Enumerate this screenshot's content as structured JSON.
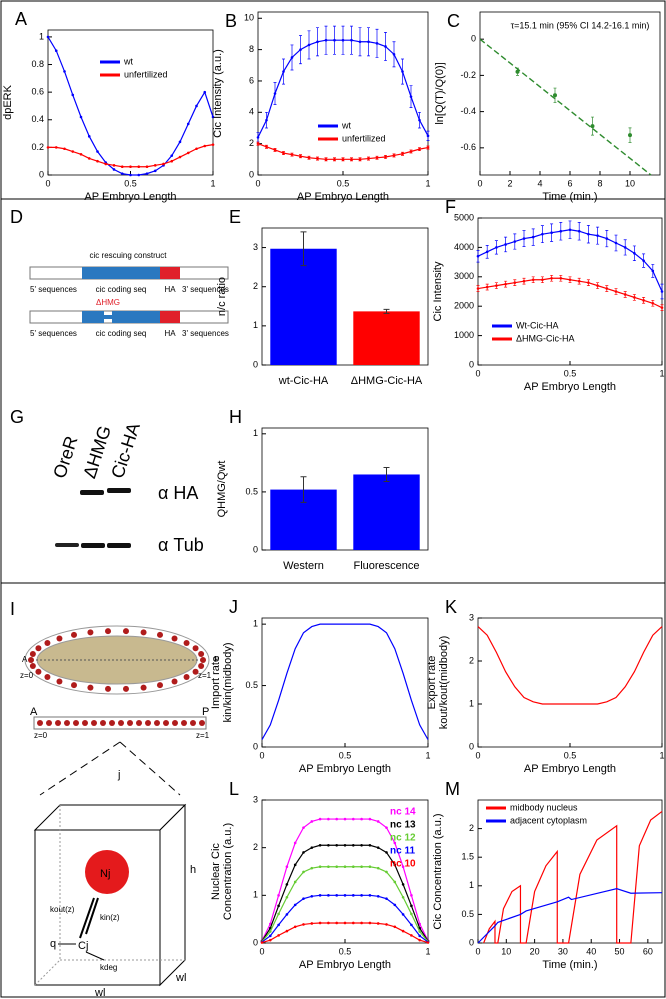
{
  "chart_data": [
    {
      "type": "line",
      "panel": "A",
      "xlabel": "AP Embryo Length",
      "ylabel": "dpERK",
      "x": [
        0,
        0.05,
        0.1,
        0.15,
        0.2,
        0.25,
        0.3,
        0.35,
        0.4,
        0.45,
        0.5,
        0.55,
        0.6,
        0.65,
        0.7,
        0.75,
        0.8,
        0.85,
        0.9,
        0.95,
        1
      ],
      "xlim": [
        0,
        1
      ],
      "xticks": [
        0,
        0.5,
        1
      ],
      "ylim": [
        0,
        1.05
      ],
      "yticks": [
        0,
        0.2,
        0.4,
        0.6,
        0.8,
        1
      ],
      "markers": true,
      "legend": "upper center",
      "series": [
        {
          "name": "wt",
          "color": "#0000ff",
          "values": [
            1.0,
            0.9,
            0.75,
            0.58,
            0.42,
            0.28,
            0.17,
            0.09,
            0.04,
            0.01,
            0.0,
            0.0,
            0.01,
            0.03,
            0.07,
            0.14,
            0.24,
            0.37,
            0.5,
            0.6,
            0.42
          ]
        },
        {
          "name": "unfertilized",
          "color": "#ff0000",
          "values": [
            0.2,
            0.2,
            0.19,
            0.17,
            0.15,
            0.12,
            0.1,
            0.08,
            0.07,
            0.06,
            0.06,
            0.06,
            0.06,
            0.07,
            0.08,
            0.1,
            0.13,
            0.16,
            0.19,
            0.21,
            0.22
          ]
        }
      ]
    },
    {
      "type": "line",
      "panel": "B",
      "xlabel": "AP Embryo Length",
      "ylabel": "Cic Intensity (a.u.)",
      "x": [
        0,
        0.05,
        0.1,
        0.15,
        0.2,
        0.25,
        0.3,
        0.35,
        0.4,
        0.45,
        0.5,
        0.55,
        0.6,
        0.65,
        0.7,
        0.75,
        0.8,
        0.85,
        0.9,
        0.95,
        1
      ],
      "xlim": [
        0,
        1
      ],
      "xticks": [
        0,
        0.5,
        1
      ],
      "ylim": [
        0,
        10.4
      ],
      "yticks": [
        0,
        2,
        4,
        6,
        8,
        10
      ],
      "markers": true,
      "legend": "lower right",
      "series": [
        {
          "name": "wt",
          "color": "#0000ff",
          "values": [
            2.4,
            3.5,
            5.2,
            6.6,
            7.5,
            8.0,
            8.3,
            8.5,
            8.6,
            8.6,
            8.6,
            8.6,
            8.5,
            8.5,
            8.4,
            8.2,
            7.7,
            6.6,
            5.0,
            3.5,
            2.5
          ],
          "errors": [
            0.3,
            0.5,
            0.7,
            0.8,
            0.8,
            0.9,
            0.9,
            0.9,
            0.9,
            0.9,
            0.9,
            0.9,
            0.9,
            0.9,
            0.9,
            0.9,
            0.8,
            0.8,
            0.7,
            0.5,
            0.3
          ]
        },
        {
          "name": "unfertilized",
          "color": "#ff0000",
          "values": [
            2.0,
            1.8,
            1.6,
            1.4,
            1.3,
            1.2,
            1.1,
            1.05,
            1.0,
            1.0,
            1.0,
            1.0,
            1.0,
            1.05,
            1.1,
            1.15,
            1.25,
            1.35,
            1.5,
            1.65,
            1.75
          ],
          "errors": [
            0.1,
            0.1,
            0.1,
            0.1,
            0.1,
            0.1,
            0.1,
            0.1,
            0.1,
            0.1,
            0.1,
            0.1,
            0.1,
            0.1,
            0.1,
            0.1,
            0.1,
            0.1,
            0.1,
            0.1,
            0.1
          ]
        }
      ]
    },
    {
      "type": "scatter",
      "panel": "C",
      "xlabel": "Time (min.)",
      "ylabel": "ln[Q(T)/Q(0)]",
      "annotation": "τ=15.1 min (95% CI 14.2-16.1 min)",
      "xlim": [
        0,
        12
      ],
      "xticks": [
        0,
        2,
        4,
        6,
        8,
        10
      ],
      "ylim": [
        -0.75,
        0.15
      ],
      "yticks": [
        0,
        -0.2,
        -0.4,
        -0.6
      ],
      "series": [
        {
          "color": "#2e8b2e",
          "style": "points",
          "x": [
            2.5,
            5,
            7.5,
            10
          ],
          "values": [
            -0.18,
            -0.31,
            -0.48,
            -0.53
          ],
          "errors": [
            0.02,
            0.04,
            0.05,
            0.04
          ]
        },
        {
          "color": "#2e8b2e",
          "style": "dashed",
          "x": [
            0,
            11.4
          ],
          "values": [
            0,
            -0.75
          ]
        }
      ]
    },
    {
      "type": "bar",
      "panel": "E",
      "ylabel": "n/c ratio",
      "categories": [
        "wt-Cic-HA",
        "ΔHMG-Cic-HA"
      ],
      "values": [
        2.97,
        1.37
      ],
      "errors": [
        0.43,
        0.05
      ],
      "colors": [
        "#0000ff",
        "#ff0000"
      ],
      "ylim": [
        0,
        3.5
      ],
      "yticks": [
        0,
        1,
        2,
        3
      ]
    },
    {
      "type": "line",
      "panel": "F",
      "xlabel": "AP Embryo Length",
      "ylabel": "Cic Intensity",
      "x": [
        0,
        0.05,
        0.1,
        0.15,
        0.2,
        0.25,
        0.3,
        0.35,
        0.4,
        0.45,
        0.5,
        0.55,
        0.6,
        0.65,
        0.7,
        0.75,
        0.8,
        0.85,
        0.9,
        0.95,
        1
      ],
      "xlim": [
        0,
        1
      ],
      "xticks": [
        0,
        0.5,
        1
      ],
      "ylim": [
        0,
        5000
      ],
      "yticks": [
        0,
        1000,
        2000,
        3000,
        4000,
        5000
      ],
      "markers": true,
      "legend": "lower right",
      "series": [
        {
          "name": "Wt-Cic-HA",
          "color": "#0000ff",
          "values": [
            3700,
            3850,
            4000,
            4100,
            4200,
            4300,
            4350,
            4450,
            4500,
            4550,
            4600,
            4550,
            4450,
            4400,
            4300,
            4150,
            4000,
            3800,
            3550,
            3200,
            2500
          ],
          "errors": [
            200,
            220,
            230,
            250,
            260,
            270,
            280,
            290,
            300,
            300,
            300,
            300,
            300,
            290,
            280,
            270,
            260,
            250,
            230,
            220,
            250
          ]
        },
        {
          "name": "ΔHMG-Cic-HA",
          "color": "#ff0000",
          "values": [
            2600,
            2650,
            2700,
            2750,
            2800,
            2850,
            2900,
            2900,
            2950,
            2950,
            2900,
            2850,
            2800,
            2700,
            2600,
            2500,
            2400,
            2300,
            2200,
            2100,
            1950
          ],
          "errors": [
            100,
            100,
            100,
            100,
            100,
            100,
            100,
            100,
            100,
            100,
            100,
            100,
            100,
            100,
            100,
            100,
            100,
            100,
            100,
            100,
            100
          ]
        }
      ]
    },
    {
      "type": "bar",
      "panel": "H",
      "ylabel": "QHMG/Qwt",
      "categories": [
        "Western",
        "Fluorescence"
      ],
      "values": [
        0.52,
        0.65
      ],
      "errors": [
        0.11,
        0.06
      ],
      "colors": [
        "#0000ff",
        "#0000ff"
      ],
      "ylim": [
        0,
        1.05
      ],
      "yticks": [
        0,
        0.5,
        1
      ]
    },
    {
      "type": "line",
      "panel": "J",
      "xlabel": "AP Embryo Length",
      "ylabel": [
        "Import rate",
        "kin/kin(midbody)"
      ],
      "x": [
        0,
        0.05,
        0.1,
        0.15,
        0.2,
        0.25,
        0.3,
        0.35,
        0.4,
        0.45,
        0.5,
        0.55,
        0.6,
        0.65,
        0.7,
        0.75,
        0.8,
        0.85,
        0.9,
        0.95,
        1
      ],
      "xlim": [
        0,
        1
      ],
      "xticks": [
        0,
        0.5,
        1
      ],
      "ylim": [
        0,
        1.05
      ],
      "yticks": [
        0,
        0.5,
        1
      ],
      "series": [
        {
          "color": "#0000ff",
          "values": [
            0.06,
            0.18,
            0.38,
            0.6,
            0.8,
            0.93,
            0.98,
            1,
            1,
            1,
            1,
            1,
            1,
            1,
            0.98,
            0.93,
            0.8,
            0.6,
            0.38,
            0.18,
            0.06
          ]
        }
      ]
    },
    {
      "type": "line",
      "panel": "K",
      "xlabel": "AP Embryo Length",
      "ylabel": [
        "Export rate",
        "kout/kout(midbody)"
      ],
      "x": [
        0,
        0.05,
        0.1,
        0.15,
        0.2,
        0.25,
        0.3,
        0.35,
        0.4,
        0.45,
        0.5,
        0.55,
        0.6,
        0.65,
        0.7,
        0.75,
        0.8,
        0.85,
        0.9,
        0.95,
        1
      ],
      "xlim": [
        0,
        1
      ],
      "xticks": [
        0,
        0.5,
        1
      ],
      "ylim": [
        0,
        3
      ],
      "yticks": [
        0,
        1,
        2,
        3
      ],
      "series": [
        {
          "color": "#ff0000",
          "values": [
            2.8,
            2.6,
            2.2,
            1.75,
            1.4,
            1.15,
            1.05,
            1.0,
            1.0,
            1.0,
            1.0,
            1.0,
            1.0,
            1.0,
            1.05,
            1.15,
            1.4,
            1.75,
            2.2,
            2.6,
            2.8
          ]
        }
      ]
    },
    {
      "type": "line",
      "panel": "L",
      "xlabel": "AP Embryo Length",
      "ylabel": [
        "Nuclear Cic",
        "Concentration (a.u.)"
      ],
      "x": [
        0,
        0.05,
        0.1,
        0.15,
        0.2,
        0.25,
        0.3,
        0.35,
        0.4,
        0.45,
        0.5,
        0.55,
        0.6,
        0.65,
        0.7,
        0.75,
        0.8,
        0.85,
        0.9,
        0.95,
        1
      ],
      "xlim": [
        0,
        1
      ],
      "xticks": [
        0,
        0.5,
        1
      ],
      "ylim": [
        0,
        3
      ],
      "yticks": [
        0,
        1,
        2,
        3
      ],
      "markers": true,
      "legend": "upper right",
      "series": [
        {
          "name": "nc 14",
          "color": "#ff00ff",
          "values": [
            0.05,
            0.4,
            1.0,
            1.6,
            2.1,
            2.42,
            2.55,
            2.6,
            2.6,
            2.6,
            2.6,
            2.6,
            2.6,
            2.6,
            2.55,
            2.42,
            2.1,
            1.6,
            1.0,
            0.4,
            0.05
          ]
        },
        {
          "name": "nc 13",
          "color": "#000000",
          "values": [
            0.04,
            0.31,
            0.78,
            1.23,
            1.64,
            1.9,
            2.0,
            2.05,
            2.05,
            2.05,
            2.05,
            2.05,
            2.05,
            2.05,
            2.0,
            1.9,
            1.64,
            1.23,
            0.78,
            0.31,
            0.04
          ]
        },
        {
          "name": "nc 12",
          "color": "#66cc33",
          "values": [
            0.03,
            0.24,
            0.61,
            0.96,
            1.28,
            1.49,
            1.57,
            1.6,
            1.6,
            1.6,
            1.6,
            1.6,
            1.6,
            1.6,
            1.57,
            1.49,
            1.28,
            0.96,
            0.61,
            0.24,
            0.03
          ]
        },
        {
          "name": "nc 11",
          "color": "#0000ff",
          "values": [
            0.02,
            0.15,
            0.38,
            0.6,
            0.8,
            0.93,
            0.98,
            1.0,
            1.0,
            1.0,
            1.0,
            1.0,
            1.0,
            1.0,
            0.98,
            0.93,
            0.8,
            0.6,
            0.38,
            0.15,
            0.02
          ]
        },
        {
          "name": "nc 10",
          "color": "#ff0000",
          "values": [
            0.01,
            0.06,
            0.16,
            0.25,
            0.34,
            0.39,
            0.41,
            0.42,
            0.42,
            0.42,
            0.42,
            0.42,
            0.42,
            0.42,
            0.41,
            0.39,
            0.34,
            0.25,
            0.16,
            0.06,
            0.01
          ]
        }
      ]
    },
    {
      "type": "line",
      "panel": "M",
      "xlabel": "Time (min.)",
      "ylabel": "Cic Concentration (a.u.)",
      "xlim": [
        0,
        65
      ],
      "xticks": [
        0,
        10,
        20,
        30,
        40,
        50,
        60
      ],
      "ylim": [
        0,
        2.5
      ],
      "yticks": [
        0,
        0.5,
        1,
        1.5,
        2
      ],
      "legend": "upper left",
      "series": [
        {
          "name": "midbody nucleus",
          "color": "#ff0000",
          "x": [
            2,
            4,
            6,
            6,
            7,
            9,
            12,
            15,
            15,
            17,
            20,
            24,
            28,
            28,
            32,
            36,
            42,
            49,
            49,
            54,
            57,
            61,
            65
          ],
          "values": [
            0,
            0.25,
            0.38,
            0,
            0,
            0.6,
            0.9,
            1.0,
            0,
            0,
            0.9,
            1.35,
            1.6,
            0,
            0,
            1.2,
            1.8,
            2.05,
            0,
            0,
            1.7,
            2.15,
            2.3
          ]
        },
        {
          "name": "adjacent  cytoplasm",
          "color": "#0000ff",
          "x": [
            0,
            6,
            7,
            15,
            17,
            28,
            32,
            33,
            49,
            54,
            65
          ],
          "values": [
            0,
            0.3,
            0.36,
            0.5,
            0.56,
            0.72,
            0.8,
            0.76,
            0.95,
            0.87,
            0.88
          ]
        }
      ]
    }
  ],
  "diagrams": {
    "D": {
      "panel": "D",
      "title": "cic rescuing construct",
      "constructs": [
        {
          "segments": [
            "5' sequences",
            "cic coding seq",
            "HA",
            "3' sequences"
          ]
        },
        {
          "deletion": "ΔHMG",
          "segments": [
            "5' sequences",
            "cic coding seq",
            "HA",
            "3' sequences"
          ]
        }
      ]
    },
    "G": {
      "panel": "G",
      "lanes": [
        "OreR",
        "ΔHMG",
        "Cic-HA"
      ],
      "antibodies": [
        "α HA",
        "α Tub"
      ]
    },
    "I": {
      "panel": "I",
      "embryo": {
        "anterior": "A",
        "posterior": "P",
        "start": "z=0",
        "end": "z=1"
      },
      "row": {
        "anterior": "A",
        "posterior": "P",
        "start": "z=0",
        "end": "z=1"
      },
      "cell": {
        "index": "j",
        "height": "h",
        "depth": "wl",
        "width": "wl",
        "nucleus": "Nj",
        "cytoplasm": "Cj",
        "export": "kout(z)",
        "import": "kin(z)",
        "source": "q",
        "degradation": "kdeg"
      }
    }
  }
}
